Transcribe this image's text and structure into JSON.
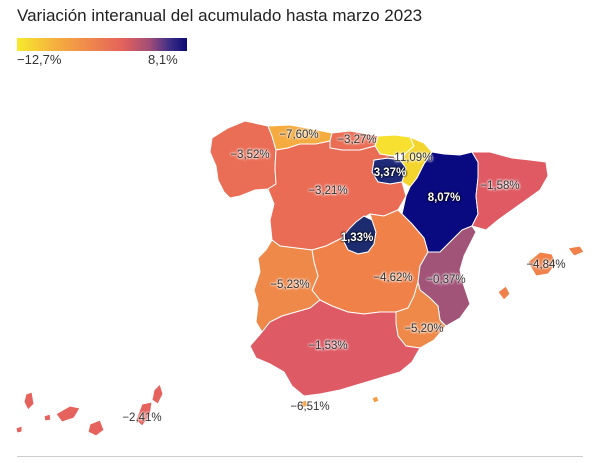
{
  "title": "Variación interanual del acumulado hasta marzo 2023",
  "legend": {
    "min_label": "−12,7%",
    "max_label": "8,1%",
    "colors": [
      "#f6ea2c",
      "#f0894c",
      "#e3625a",
      "#0c0a73"
    ]
  },
  "regions": {
    "galicia": {
      "label": "−3,52%",
      "value": -3.52,
      "color": "#ea6e55"
    },
    "asturias": {
      "label": "−7,60%",
      "value": -7.6,
      "color": "#f5ab3f"
    },
    "cantabria": {
      "label": "−3,27%",
      "value": -3.27,
      "color": "#ea6e55"
    },
    "pais_vasco": {
      "label": "−11,09%",
      "value": -11.09,
      "color": "#f7e02f"
    },
    "castilla_leon": {
      "label": "−3,21%",
      "value": -3.21,
      "color": "#ea6c55"
    },
    "la_rioja": {
      "label": "3,37%",
      "value": 3.37,
      "color": "#1f2a78"
    },
    "navarra": {
      "label": "",
      "value": null,
      "color": "#f3d52e"
    },
    "aragon": {
      "label": "8,07%",
      "value": 8.07,
      "color": "#0a0a80"
    },
    "cataluna": {
      "label": "−1,58%",
      "value": -1.58,
      "color": "#df5a63"
    },
    "madrid": {
      "label": "1,33%",
      "value": 1.33,
      "color": "#1d2c6e"
    },
    "castilla_la_mancha": {
      "label": "−4,62%",
      "value": -4.62,
      "color": "#ef8149"
    },
    "valencia": {
      "label": "−0,37%",
      "value": -0.37,
      "color": "#a25478"
    },
    "extremadura": {
      "label": "−5,23%",
      "value": -5.23,
      "color": "#ef8949"
    },
    "murcia": {
      "label": "−5,20%",
      "value": -5.2,
      "color": "#ef8949"
    },
    "andalucia": {
      "label": "−1,53%",
      "value": -1.53,
      "color": "#de5a64"
    },
    "baleares": {
      "label": "−4,84%",
      "value": -4.84,
      "color": "#f08149"
    },
    "canarias": {
      "label": "−2,41%",
      "value": -2.41,
      "color": "#e6625d"
    },
    "ceuta_melilla": {
      "label": "−6,51%",
      "value": -6.51,
      "color": "#f39e44"
    }
  }
}
